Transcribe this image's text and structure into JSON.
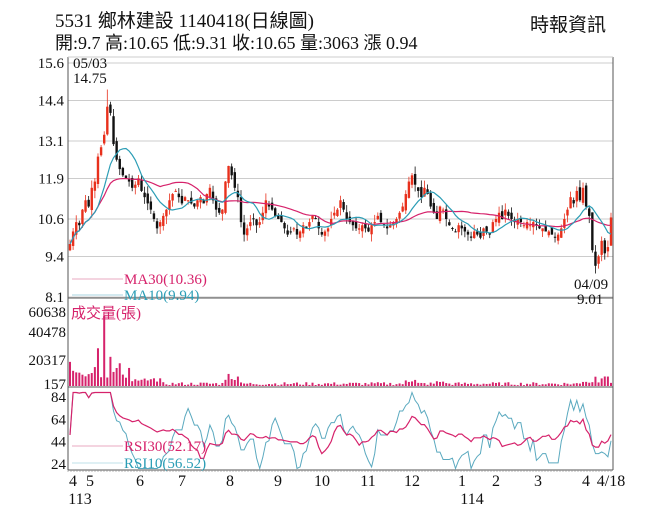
{
  "header": {
    "title": "5531  鄉林建設 1140418(日線圖)",
    "subtitle": "開:9.7 高:10.65 低:9.31 收:10.65 量:3063 漲 0.94",
    "brand": "時報資訊"
  },
  "colors": {
    "up": "#e8301c",
    "down": "#111111",
    "ma30": "#d6226b",
    "ma10": "#2b9db5",
    "volume": "#d6226b",
    "rsi30": "#d6226b",
    "rsi10": "#5aa9bf",
    "grid": "#cccccc",
    "frame": "#555555"
  },
  "annotations": {
    "high_date": "05/03",
    "high_value": "14.75",
    "low_date": "04/09",
    "low_value": "9.01"
  },
  "legends": {
    "ma30": "MA30(10.36)",
    "ma10": "MA10(9.94)",
    "volume": "成交量(張)",
    "rsi30": "RSI30(52.17)",
    "rsi10": "RSI10(56.52)"
  },
  "axes": {
    "price_ticks": [
      "15.6",
      "14.4",
      "13.1",
      "11.9",
      "10.6",
      "9.4",
      "8.1"
    ],
    "volume_ticks": [
      "60638",
      "40478",
      "20317",
      "157"
    ],
    "rsi_ticks": [
      "84",
      "64",
      "44",
      "24"
    ],
    "x_ticks": [
      "4",
      "5",
      "6",
      "7",
      "8",
      "9",
      "10",
      "11",
      "12",
      "1",
      "2",
      "3",
      "4",
      "4/18"
    ],
    "year_labels": [
      "113",
      "114"
    ]
  },
  "chart_data": {
    "type": "candlestick",
    "title": "5531 鄉林建設 1140418(日線圖)",
    "period": "daily, 113/04 to 114/04/18",
    "last_bar": {
      "open": 9.7,
      "high": 10.65,
      "low": 9.31,
      "close": 10.65,
      "volume": 3063,
      "change": 0.94
    },
    "price_axis": {
      "ticks": [
        15.6,
        14.4,
        13.1,
        11.9,
        10.6,
        9.4,
        8.1
      ],
      "range": [
        8.1,
        15.6
      ]
    },
    "volume_axis": {
      "ticks": [
        60638,
        40478,
        20317,
        157
      ]
    },
    "rsi_axis": {
      "ticks": [
        84,
        64,
        44,
        24
      ]
    },
    "x_labels": [
      "4",
      "5",
      "6",
      "7",
      "8",
      "9",
      "10",
      "11",
      "12",
      "1",
      "2",
      "3",
      "4",
      "4/18"
    ],
    "year_labels": {
      "113": "Apr 2024",
      "114": "Jan 2025"
    },
    "annotations": [
      {
        "label": "05/03",
        "value": 14.75,
        "type": "period high"
      },
      {
        "label": "04/09",
        "value": 9.01,
        "type": "period low"
      }
    ],
    "indicators": {
      "MA30": 10.36,
      "MA10": 9.94,
      "RSI30": 52.17,
      "RSI10": 56.52
    },
    "monthly_close_approx": {
      "categories": [
        "113/04",
        "113/05",
        "113/06",
        "113/07",
        "113/08",
        "113/09",
        "113/10",
        "113/11",
        "113/12",
        "114/01",
        "114/02",
        "114/03",
        "114/04"
      ],
      "values": [
        10.2,
        12.2,
        11.2,
        11.0,
        10.3,
        10.2,
        10.4,
        11.0,
        10.5,
        10.3,
        10.3,
        10.8,
        10.65
      ]
    },
    "close_series": [
      9.8,
      10.2,
      10.5,
      10.4,
      10.9,
      11.2,
      11.0,
      11.6,
      11.8,
      12.6,
      12.9,
      13.3,
      14.2,
      14.0,
      13.0,
      12.5,
      12.2,
      12.0,
      11.9,
      11.8,
      11.6,
      11.7,
      11.9,
      11.5,
      11.3,
      11.1,
      10.9,
      10.6,
      10.3,
      10.5,
      10.7,
      10.9,
      11.2,
      11.4,
      11.5,
      11.3,
      11.1,
      11.3,
      11.2,
      11.1,
      11.0,
      11.2,
      11.3,
      11.1,
      11.4,
      11.6,
      11.2,
      10.9,
      10.8,
      10.9,
      11.8,
      12.3,
      12.0,
      11.6,
      11.3,
      10.5,
      10.1,
      10.3,
      10.5,
      10.6,
      10.4,
      10.5,
      10.8,
      11.2,
      11.0,
      10.9,
      10.7,
      10.6,
      10.5,
      10.3,
      10.1,
      10.2,
      10.3,
      10.1,
      10.2,
      10.4,
      10.3,
      10.5,
      10.7,
      10.6,
      10.3,
      10.1,
      10.2,
      10.3,
      10.6,
      10.8,
      10.9,
      11.2,
      10.9,
      10.6,
      10.5,
      10.4,
      10.3,
      10.3,
      10.4,
      10.3,
      10.2,
      10.4,
      10.5,
      10.7,
      10.5,
      10.4,
      10.3,
      10.4,
      10.5,
      10.6,
      10.8,
      11.0,
      11.4,
      11.8,
      12.0,
      11.7,
      11.5,
      11.3,
      11.6,
      11.4,
      11.0,
      10.8,
      10.6,
      11.0,
      10.9,
      10.6,
      10.4,
      10.3,
      10.2,
      10.4,
      10.3,
      10.2,
      10.1,
      10.0,
      10.2,
      10.1,
      10.0,
      10.3,
      10.2,
      10.1,
      10.5,
      10.6,
      10.8,
      10.6,
      10.9,
      10.7,
      10.6,
      10.5,
      10.6,
      10.5,
      10.4,
      10.5,
      10.4,
      10.5,
      10.4,
      10.3,
      10.3,
      10.2,
      10.2,
      10.1,
      10.0,
      10.1,
      10.3,
      10.6,
      10.9,
      11.3,
      11.1,
      11.5,
      11.2,
      11.6,
      11.0,
      10.7,
      9.6,
      9.1,
      9.4,
      9.9,
      9.5,
      9.7,
      10.65
    ]
  }
}
